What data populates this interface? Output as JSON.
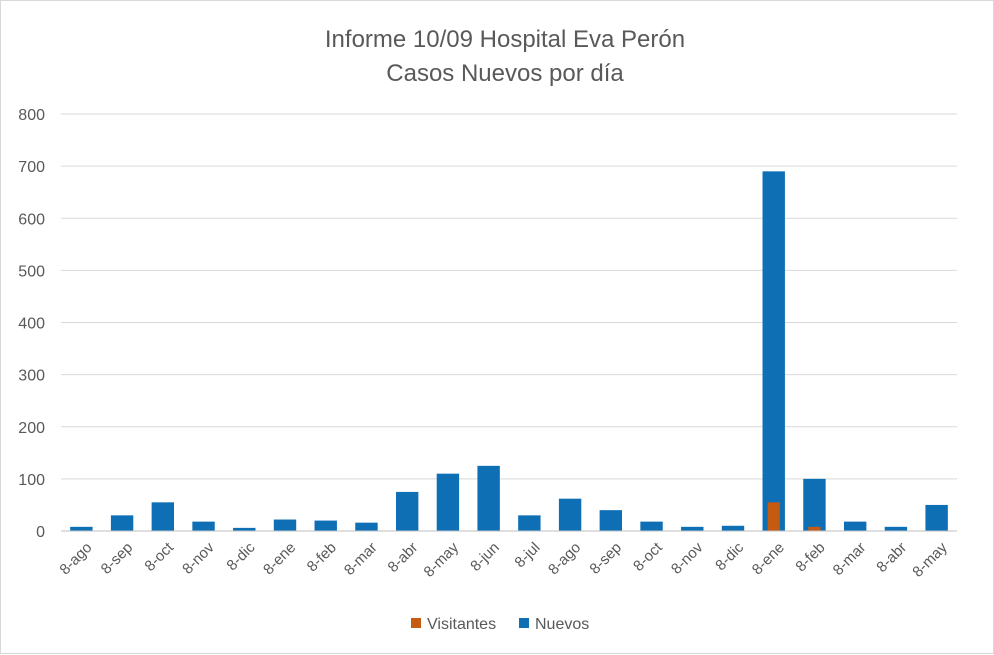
{
  "chart_data": {
    "type": "bar",
    "title_line1": "Informe 10/09 Hospital Eva Perón",
    "title_line2": "Casos Nuevos por día",
    "xlabel": "",
    "ylabel": "",
    "ylim": [
      0,
      800
    ],
    "yticks": [
      0,
      100,
      200,
      300,
      400,
      500,
      600,
      700,
      800
    ],
    "grid": true,
    "legend_position": "bottom",
    "categories": [
      "8-ago",
      "8-sep",
      "8-oct",
      "8-nov",
      "8-dic",
      "8-ene",
      "8-feb",
      "8-mar",
      "8-abr",
      "8-may",
      "8-jun",
      "8-jul",
      "8-ago",
      "8-sep",
      "8-oct",
      "8-nov",
      "8-dic",
      "8-ene",
      "8-feb",
      "8-mar",
      "8-abr",
      "8-may"
    ],
    "series": [
      {
        "name": "Visitantes",
        "color": "#c55a11",
        "values": [
          0,
          0,
          0,
          0,
          0,
          0,
          0,
          0,
          0,
          0,
          0,
          0,
          0,
          0,
          0,
          0,
          0,
          55,
          8,
          0,
          0,
          0
        ]
      },
      {
        "name": "Nuevos",
        "color": "#0f6fb5",
        "values": [
          8,
          30,
          55,
          18,
          6,
          22,
          20,
          16,
          75,
          110,
          125,
          30,
          62,
          40,
          18,
          8,
          10,
          690,
          100,
          18,
          8,
          50
        ]
      }
    ]
  }
}
